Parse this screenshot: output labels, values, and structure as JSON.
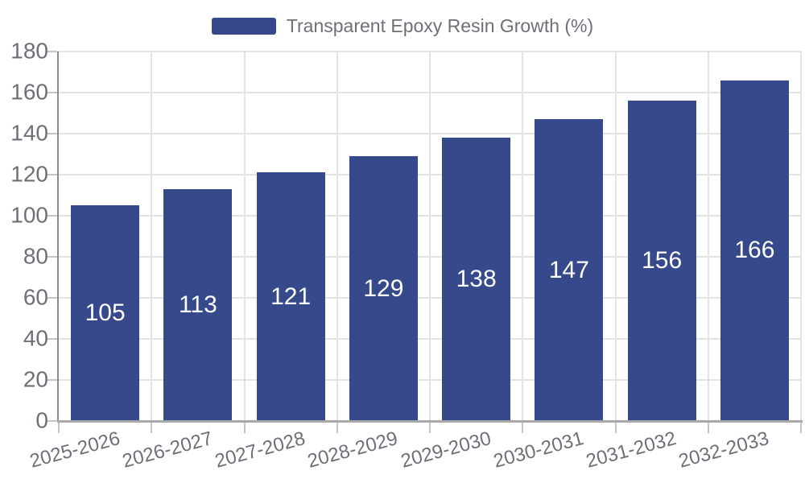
{
  "chart_data": {
    "type": "bar",
    "title": "Transparent Epoxy Resin Growth (%)",
    "legend_label": "Transparent Epoxy Resin Growth (%)",
    "legend_position": "top-center",
    "categories": [
      "2025-2026",
      "2026-2027",
      "2027-2028",
      "2028-2029",
      "2029-2030",
      "2030-2031",
      "2031-2032",
      "2032-2033"
    ],
    "values": [
      105,
      113,
      121,
      129,
      138,
      147,
      156,
      166
    ],
    "xlabel": "",
    "ylabel": "",
    "ylim": [
      0,
      180
    ],
    "ytick_interval": 20,
    "ytick_labels": [
      "0",
      "20",
      "40",
      "60",
      "80",
      "100",
      "120",
      "140",
      "160",
      "180"
    ],
    "grid": "on",
    "colors": {
      "bar": "#36498a",
      "value_label": "#ffffff",
      "axis_text": "#6e7079",
      "gridline": "#e3e3e3",
      "y_axis_line": "#8a8a8a",
      "x_axis_line": "#a9a9a9",
      "tick": "#c6c6c6",
      "background": "#ffffff"
    }
  }
}
